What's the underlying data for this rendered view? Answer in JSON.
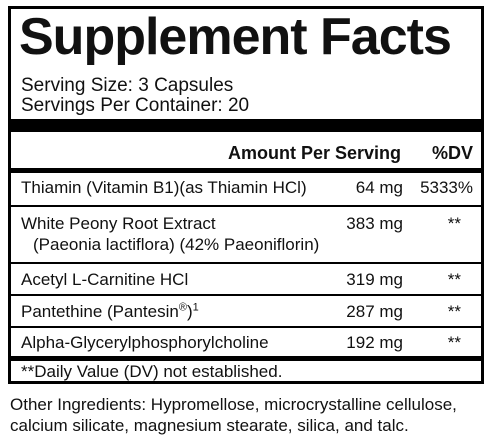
{
  "title": "Supplement Facts",
  "serving_size": "Serving Size: 3 Capsules",
  "servings_per_container": "Servings Per Container: 20",
  "header": {
    "amount": "Amount Per Serving",
    "dv": "%DV"
  },
  "rows": [
    {
      "name": "Thiamin (Vitamin B1)(as Thiamin HCl)",
      "amount": "64 mg",
      "dv": "5333%"
    },
    {
      "name": "White Peony Root Extract",
      "name2": "(Paeonia lactiflora) (42% Paeoniflorin)",
      "amount": "383 mg",
      "dv": "**"
    },
    {
      "name": "Acetyl L-Carnitine HCl",
      "amount": "319 mg",
      "dv": "**"
    },
    {
      "name": "Pantethine (Pantesin",
      "reg": "®",
      "sup": "1",
      "close": ")",
      "amount": "287 mg",
      "dv": "**"
    },
    {
      "name": "Alpha-Glycerylphosphorylcholine",
      "amount": "192 mg",
      "dv": "**"
    }
  ],
  "footnote": "**Daily Value (DV) not established.",
  "other_ingredients": "Other Ingredients: Hypromellose, microcrystalline cellulose, calcium silicate, magnesium stearate, silica, and talc."
}
